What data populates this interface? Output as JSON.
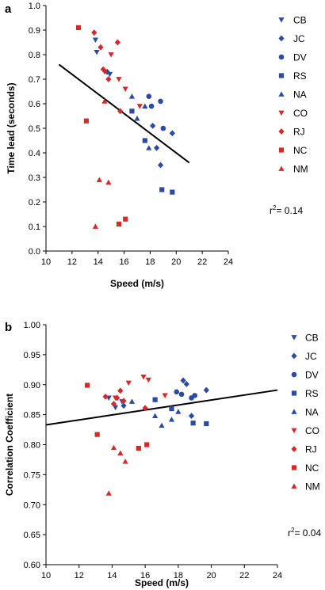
{
  "colors": {
    "blue": "#2b4aa0",
    "red": "#d42a2a",
    "axis": "#000000"
  },
  "chart_data": [
    {
      "type": "scatter",
      "panel_label": "a",
      "xlabel": "Speed (m/s)",
      "ylabel": "Time lead (seconds)",
      "xlim": [
        10,
        24
      ],
      "ylim": [
        0,
        1.0
      ],
      "x_ticks": [
        10,
        12,
        14,
        16,
        18,
        20,
        22,
        24
      ],
      "x_tick_labels": [
        "10",
        "12",
        "14",
        "16",
        "18",
        "20",
        "22",
        "24"
      ],
      "y_ticks": [
        0,
        0.1,
        0.2,
        0.3,
        0.4,
        0.5,
        0.6,
        0.7,
        0.8,
        0.9,
        1.0
      ],
      "y_tick_labels": [
        "0.0",
        "0.1",
        "0.2",
        "0.3",
        "0.4",
        "0.5",
        "0.6",
        "0.7",
        "0.8",
        "0.9",
        "1.0"
      ],
      "grid": false,
      "legend_position": "right",
      "annotation": {
        "prefix": "r",
        "sup": "2",
        "suffix": "= 0.14"
      },
      "fit_line": {
        "x": [
          11,
          21
        ],
        "y": [
          0.76,
          0.36
        ]
      },
      "series": [
        {
          "name": "CB",
          "marker": "triangle-down",
          "color": "blue",
          "points": [
            [
              13.8,
              0.86
            ],
            [
              13.9,
              0.81
            ],
            [
              14.9,
              0.72
            ]
          ]
        },
        {
          "name": "JC",
          "marker": "diamond",
          "color": "blue",
          "points": [
            [
              14.7,
              0.73
            ],
            [
              18.2,
              0.51
            ],
            [
              18.5,
              0.42
            ],
            [
              18.8,
              0.35
            ],
            [
              19.7,
              0.48
            ]
          ]
        },
        {
          "name": "DV",
          "marker": "circle",
          "color": "blue",
          "points": [
            [
              17.9,
              0.63
            ],
            [
              18.1,
              0.59
            ],
            [
              18.8,
              0.61
            ],
            [
              19.0,
              0.5
            ]
          ]
        },
        {
          "name": "RS",
          "marker": "square",
          "color": "blue",
          "points": [
            [
              16.6,
              0.57
            ],
            [
              17.6,
              0.45
            ],
            [
              18.9,
              0.25
            ],
            [
              19.7,
              0.24
            ]
          ]
        },
        {
          "name": "NA",
          "marker": "triangle-up",
          "color": "blue",
          "points": [
            [
              16.6,
              0.63
            ],
            [
              17.0,
              0.54
            ],
            [
              17.6,
              0.59
            ],
            [
              17.9,
              0.42
            ]
          ]
        },
        {
          "name": "CO",
          "marker": "triangle-down",
          "color": "red",
          "points": [
            [
              14.5,
              0.73
            ],
            [
              15.0,
              0.8
            ],
            [
              15.6,
              0.7
            ],
            [
              16.1,
              0.66
            ],
            [
              17.2,
              0.59
            ]
          ]
        },
        {
          "name": "RJ",
          "marker": "diamond",
          "color": "red",
          "points": [
            [
              13.7,
              0.89
            ],
            [
              14.2,
              0.83
            ],
            [
              14.4,
              0.74
            ],
            [
              14.8,
              0.7
            ],
            [
              15.5,
              0.85
            ],
            [
              15.7,
              0.57
            ]
          ]
        },
        {
          "name": "NC",
          "marker": "square",
          "color": "red",
          "points": [
            [
              12.5,
              0.91
            ],
            [
              13.1,
              0.53
            ],
            [
              15.6,
              0.11
            ],
            [
              16.1,
              0.13
            ]
          ]
        },
        {
          "name": "NM",
          "marker": "triangle-up",
          "color": "red",
          "points": [
            [
              13.8,
              0.1
            ],
            [
              14.1,
              0.29
            ],
            [
              14.5,
              0.61
            ],
            [
              14.8,
              0.28
            ]
          ]
        }
      ]
    },
    {
      "type": "scatter",
      "panel_label": "b",
      "xlabel": "Speed (m/s)",
      "ylabel": "Correlation Coefficient",
      "xlim": [
        10,
        24
      ],
      "ylim": [
        0.6,
        1.0
      ],
      "x_ticks": [
        10,
        12,
        14,
        16,
        18,
        20,
        22,
        24
      ],
      "x_tick_labels": [
        "10",
        "12",
        "14",
        "16",
        "18",
        "20",
        "22",
        "24"
      ],
      "y_ticks": [
        0.6,
        0.65,
        0.7,
        0.75,
        0.8,
        0.85,
        0.9,
        0.95,
        1.0
      ],
      "y_tick_labels": [
        "0.60",
        "0.65",
        "0.70",
        "0.75",
        "0.80",
        "0.85",
        "0.90",
        "0.95",
        "1.00"
      ],
      "grid": false,
      "legend_position": "right",
      "annotation": {
        "prefix": "r",
        "sup": "2",
        "suffix": "= 0.04"
      },
      "fit_line": {
        "x": [
          10,
          24
        ],
        "y": [
          0.833,
          0.891
        ]
      },
      "series": [
        {
          "name": "CB",
          "marker": "triangle-down",
          "color": "blue",
          "points": [
            [
              13.8,
              0.878
            ],
            [
              14.2,
              0.862
            ],
            [
              14.6,
              0.872
            ]
          ]
        },
        {
          "name": "JC",
          "marker": "diamond",
          "color": "blue",
          "points": [
            [
              14.7,
              0.865
            ],
            [
              18.3,
              0.907
            ],
            [
              18.5,
              0.901
            ],
            [
              18.8,
              0.848
            ],
            [
              19.7,
              0.891
            ]
          ]
        },
        {
          "name": "DV",
          "marker": "circle",
          "color": "blue",
          "points": [
            [
              17.9,
              0.888
            ],
            [
              18.2,
              0.884
            ],
            [
              18.8,
              0.878
            ],
            [
              19.0,
              0.882
            ]
          ]
        },
        {
          "name": "RS",
          "marker": "square",
          "color": "blue",
          "points": [
            [
              16.6,
              0.875
            ],
            [
              17.6,
              0.86
            ],
            [
              18.9,
              0.836
            ],
            [
              19.7,
              0.835
            ]
          ]
        },
        {
          "name": "NA",
          "marker": "triangle-up",
          "color": "blue",
          "points": [
            [
              15.2,
              0.872
            ],
            [
              16.6,
              0.848
            ],
            [
              17.0,
              0.832
            ],
            [
              17.6,
              0.842
            ],
            [
              18.0,
              0.855
            ]
          ]
        },
        {
          "name": "CO",
          "marker": "triangle-down",
          "color": "red",
          "points": [
            [
              14.2,
              0.878
            ],
            [
              15.0,
              0.903
            ],
            [
              15.9,
              0.913
            ],
            [
              16.2,
              0.908
            ],
            [
              17.2,
              0.882
            ]
          ]
        },
        {
          "name": "RJ",
          "marker": "diamond",
          "color": "red",
          "points": [
            [
              13.6,
              0.88
            ],
            [
              14.1,
              0.868
            ],
            [
              14.3,
              0.878
            ],
            [
              14.5,
              0.89
            ],
            [
              14.7,
              0.873
            ],
            [
              16.0,
              0.861
            ]
          ]
        },
        {
          "name": "NC",
          "marker": "square",
          "color": "red",
          "points": [
            [
              12.5,
              0.899
            ],
            [
              13.1,
              0.817
            ],
            [
              15.6,
              0.794
            ],
            [
              16.1,
              0.8
            ]
          ]
        },
        {
          "name": "NM",
          "marker": "triangle-up",
          "color": "red",
          "points": [
            [
              13.8,
              0.719
            ],
            [
              14.1,
              0.795
            ],
            [
              14.5,
              0.786
            ],
            [
              14.8,
              0.772
            ]
          ]
        }
      ]
    }
  ]
}
